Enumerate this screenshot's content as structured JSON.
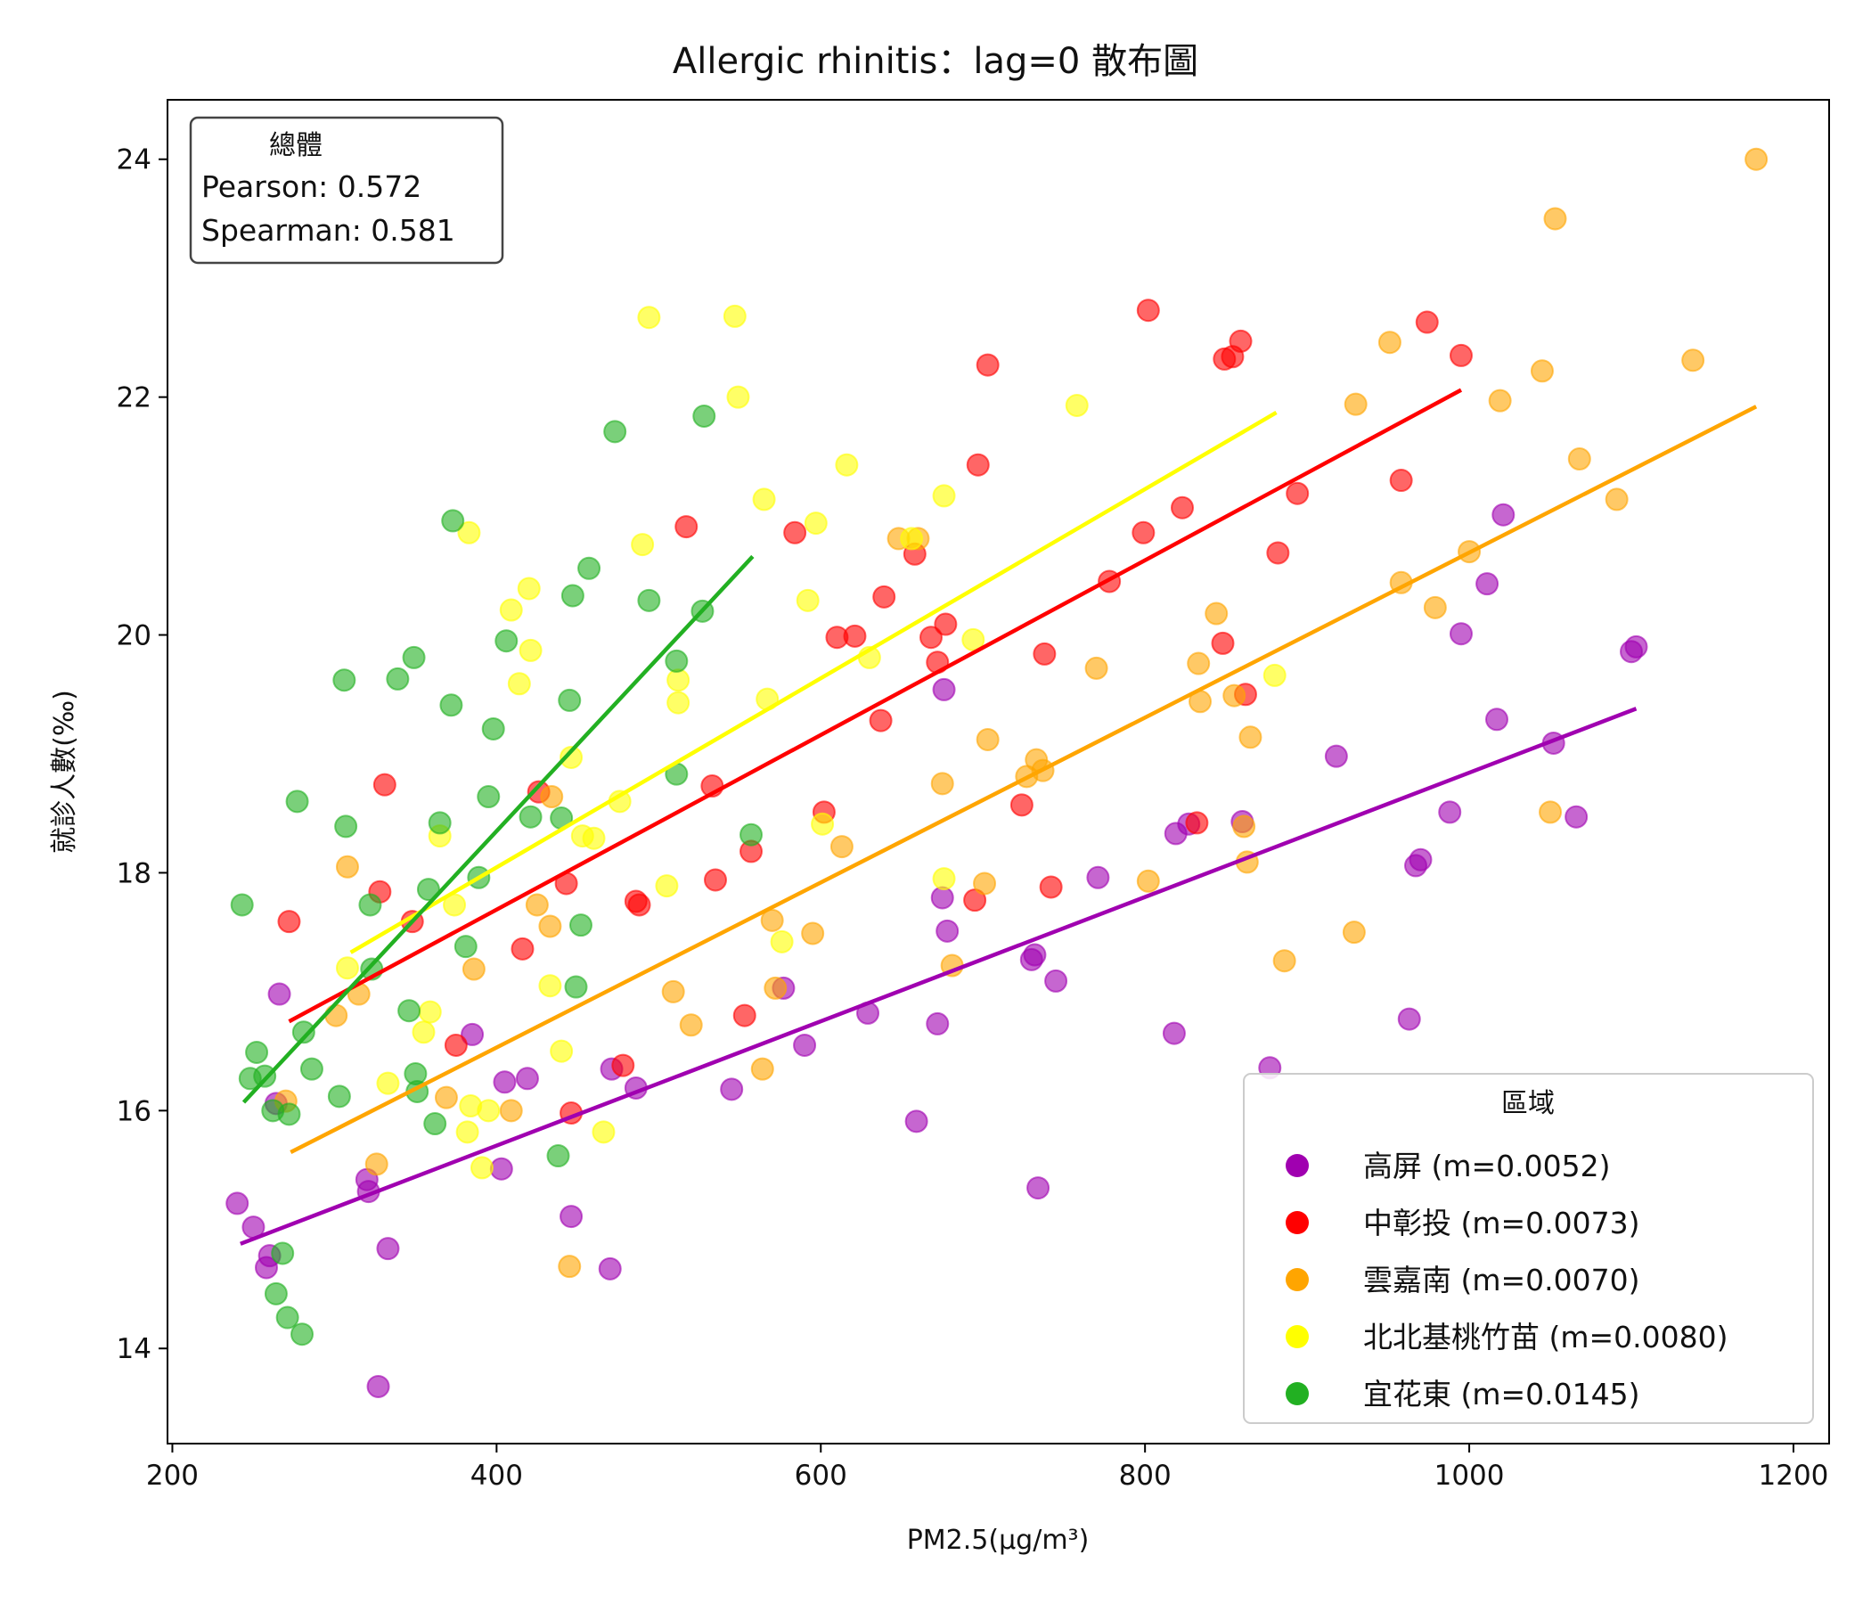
{
  "chart_data": {
    "type": "scatter",
    "title": "Allergic rhinitis：lag=0 散布圖",
    "xlabel": "PM2.5(μg/m³)",
    "ylabel": "就診人數(‰)",
    "xlim": [
      197,
      1222
    ],
    "ylim": [
      13.2,
      24.5
    ],
    "xticks": [
      200,
      400,
      600,
      800,
      1000,
      1200
    ],
    "yticks": [
      14,
      16,
      18,
      20,
      22,
      24
    ],
    "grid": false,
    "stats_box": {
      "title": "總體",
      "pearson": "Pearson: 0.572",
      "spearman": "Spearman: 0.581",
      "placement": "top-left"
    },
    "legend": {
      "title": "區域",
      "placement": "bottom-right"
    },
    "series": [
      {
        "name": "高屏 (m=0.0052)",
        "color": "#a000b0",
        "fit": [
          [
            242,
            14.88
          ],
          [
            1103,
            19.38
          ]
        ],
        "points": [
          [
            240,
            15.22
          ],
          [
            250,
            15.02
          ],
          [
            258,
            14.68
          ],
          [
            260,
            14.78
          ],
          [
            264,
            16.06
          ],
          [
            266,
            16.98
          ],
          [
            320,
            15.42
          ],
          [
            321,
            15.32
          ],
          [
            327,
            13.68
          ],
          [
            333,
            14.84
          ],
          [
            385,
            16.64
          ],
          [
            403,
            15.51
          ],
          [
            405,
            16.24
          ],
          [
            419,
            16.27
          ],
          [
            446,
            15.11
          ],
          [
            470,
            14.67
          ],
          [
            471,
            16.35
          ],
          [
            486,
            16.19
          ],
          [
            545,
            16.18
          ],
          [
            577,
            17.03
          ],
          [
            590,
            16.55
          ],
          [
            629,
            16.82
          ],
          [
            659,
            15.91
          ],
          [
            672,
            16.73
          ],
          [
            675,
            17.79
          ],
          [
            676,
            19.54
          ],
          [
            678,
            17.51
          ],
          [
            730,
            17.27
          ],
          [
            732,
            17.31
          ],
          [
            734,
            15.35
          ],
          [
            745,
            17.09
          ],
          [
            771,
            17.96
          ],
          [
            818,
            16.65
          ],
          [
            819,
            18.33
          ],
          [
            827,
            18.41
          ],
          [
            860,
            18.43
          ],
          [
            877,
            16.36
          ],
          [
            918,
            18.98
          ],
          [
            963,
            16.77
          ],
          [
            967,
            18.06
          ],
          [
            970,
            18.11
          ],
          [
            988,
            18.51
          ],
          [
            995,
            20.01
          ],
          [
            1011,
            20.43
          ],
          [
            1017,
            19.29
          ],
          [
            1021,
            21.01
          ],
          [
            1052,
            19.09
          ],
          [
            1066,
            18.47
          ],
          [
            1100,
            19.86
          ],
          [
            1103,
            19.9
          ]
        ]
      },
      {
        "name": "中彰投 (m=0.0073)",
        "color": "#ff0000",
        "fit": [
          [
            272,
            16.75
          ],
          [
            995,
            22.06
          ]
        ],
        "points": [
          [
            272,
            17.59
          ],
          [
            328,
            17.84
          ],
          [
            331,
            18.74
          ],
          [
            348,
            17.59
          ],
          [
            375,
            16.55
          ],
          [
            416,
            17.36
          ],
          [
            426,
            18.68
          ],
          [
            443,
            17.91
          ],
          [
            446,
            15.98
          ],
          [
            478,
            16.38
          ],
          [
            486,
            17.76
          ],
          [
            488,
            17.73
          ],
          [
            517,
            20.91
          ],
          [
            533,
            18.73
          ],
          [
            535,
            17.94
          ],
          [
            553,
            16.8
          ],
          [
            557,
            18.18
          ],
          [
            584,
            20.86
          ],
          [
            602,
            18.51
          ],
          [
            610,
            19.98
          ],
          [
            621,
            19.99
          ],
          [
            637,
            19.28
          ],
          [
            639,
            20.32
          ],
          [
            658,
            20.68
          ],
          [
            668,
            19.98
          ],
          [
            672,
            19.77
          ],
          [
            677,
            20.09
          ],
          [
            695,
            17.77
          ],
          [
            697,
            21.43
          ],
          [
            703,
            22.27
          ],
          [
            724,
            18.57
          ],
          [
            738,
            19.84
          ],
          [
            742,
            17.88
          ],
          [
            778,
            20.45
          ],
          [
            799,
            20.86
          ],
          [
            802,
            22.73
          ],
          [
            823,
            21.07
          ],
          [
            832,
            18.42
          ],
          [
            848,
            19.93
          ],
          [
            849,
            22.32
          ],
          [
            854,
            22.34
          ],
          [
            859,
            22.47
          ],
          [
            862,
            19.5
          ],
          [
            882,
            20.69
          ],
          [
            894,
            21.19
          ],
          [
            958,
            21.3
          ],
          [
            974,
            22.63
          ],
          [
            995,
            22.35
          ]
        ]
      },
      {
        "name": "雲嘉南 (m=0.0070)",
        "color": "#ffa500",
        "fit": [
          [
            273,
            15.65
          ],
          [
            1177,
            21.92
          ]
        ],
        "points": [
          [
            270,
            16.08
          ],
          [
            301,
            16.8
          ],
          [
            308,
            18.05
          ],
          [
            315,
            16.98
          ],
          [
            326,
            15.55
          ],
          [
            369,
            16.11
          ],
          [
            386,
            17.19
          ],
          [
            409,
            16.0
          ],
          [
            425,
            17.73
          ],
          [
            433,
            17.55
          ],
          [
            434,
            18.64
          ],
          [
            445,
            14.69
          ],
          [
            509,
            17.0
          ],
          [
            520,
            16.72
          ],
          [
            564,
            16.35
          ],
          [
            570,
            17.6
          ],
          [
            572,
            17.03
          ],
          [
            595,
            17.49
          ],
          [
            613,
            18.22
          ],
          [
            648,
            20.81
          ],
          [
            660,
            20.81
          ],
          [
            675,
            18.75
          ],
          [
            681,
            17.22
          ],
          [
            701,
            17.91
          ],
          [
            703,
            19.12
          ],
          [
            727,
            18.81
          ],
          [
            733,
            18.95
          ],
          [
            737,
            18.86
          ],
          [
            770,
            19.72
          ],
          [
            802,
            17.93
          ],
          [
            833,
            19.76
          ],
          [
            834,
            19.44
          ],
          [
            844,
            20.18
          ],
          [
            855,
            19.49
          ],
          [
            861,
            18.39
          ],
          [
            863,
            18.09
          ],
          [
            865,
            19.14
          ],
          [
            886,
            17.26
          ],
          [
            929,
            17.5
          ],
          [
            930,
            21.94
          ],
          [
            951,
            22.46
          ],
          [
            958,
            20.44
          ],
          [
            979,
            20.23
          ],
          [
            1000,
            20.7
          ],
          [
            1019,
            21.97
          ],
          [
            1045,
            22.22
          ],
          [
            1050,
            18.51
          ],
          [
            1053,
            23.5
          ],
          [
            1068,
            21.48
          ],
          [
            1091,
            21.14
          ],
          [
            1138,
            22.31
          ],
          [
            1177,
            24.0
          ]
        ]
      },
      {
        "name": "北北基桃竹苗 (m=0.0080)",
        "color": "#ffff00",
        "fit": [
          [
            310,
            17.33
          ],
          [
            881,
            21.87
          ]
        ],
        "points": [
          [
            308,
            17.2
          ],
          [
            333,
            16.23
          ],
          [
            355,
            16.66
          ],
          [
            359,
            16.83
          ],
          [
            365,
            18.31
          ],
          [
            374,
            17.73
          ],
          [
            382,
            15.82
          ],
          [
            383,
            20.86
          ],
          [
            384,
            16.04
          ],
          [
            391,
            15.52
          ],
          [
            395,
            16.0
          ],
          [
            409,
            20.21
          ],
          [
            414,
            19.59
          ],
          [
            420,
            20.39
          ],
          [
            421,
            19.87
          ],
          [
            433,
            17.05
          ],
          [
            440,
            16.5
          ],
          [
            446,
            18.97
          ],
          [
            453,
            18.31
          ],
          [
            460,
            18.29
          ],
          [
            466,
            15.82
          ],
          [
            476,
            18.6
          ],
          [
            490,
            20.76
          ],
          [
            494,
            22.67
          ],
          [
            505,
            17.89
          ],
          [
            512,
            19.62
          ],
          [
            512,
            19.43
          ],
          [
            547,
            22.68
          ],
          [
            549,
            22.0
          ],
          [
            565,
            21.14
          ],
          [
            567,
            19.46
          ],
          [
            576,
            17.42
          ],
          [
            592,
            20.29
          ],
          [
            597,
            20.94
          ],
          [
            601,
            18.41
          ],
          [
            616,
            21.43
          ],
          [
            630,
            19.81
          ],
          [
            656,
            20.81
          ],
          [
            676,
            21.17
          ],
          [
            676,
            17.95
          ],
          [
            694,
            19.96
          ],
          [
            758,
            21.93
          ],
          [
            880,
            19.66
          ]
        ]
      },
      {
        "name": "宜花東 (m=0.0145)",
        "color": "#22b022",
        "fit": [
          [
            244,
            16.07
          ],
          [
            558,
            20.66
          ]
        ],
        "points": [
          [
            243,
            17.73
          ],
          [
            248,
            16.27
          ],
          [
            252,
            16.49
          ],
          [
            257,
            16.29
          ],
          [
            262,
            16.0
          ],
          [
            264,
            14.46
          ],
          [
            268,
            14.8
          ],
          [
            271,
            14.26
          ],
          [
            272,
            15.97
          ],
          [
            277,
            18.6
          ],
          [
            280,
            14.12
          ],
          [
            281,
            16.66
          ],
          [
            286,
            16.35
          ],
          [
            303,
            16.12
          ],
          [
            306,
            19.62
          ],
          [
            307,
            18.39
          ],
          [
            322,
            17.73
          ],
          [
            323,
            17.19
          ],
          [
            339,
            19.63
          ],
          [
            346,
            16.84
          ],
          [
            349,
            19.81
          ],
          [
            350,
            16.31
          ],
          [
            351,
            16.16
          ],
          [
            358,
            17.86
          ],
          [
            362,
            15.89
          ],
          [
            365,
            18.42
          ],
          [
            372,
            19.41
          ],
          [
            373,
            20.96
          ],
          [
            381,
            17.38
          ],
          [
            389,
            17.96
          ],
          [
            395,
            18.64
          ],
          [
            398,
            19.21
          ],
          [
            406,
            19.95
          ],
          [
            421,
            18.47
          ],
          [
            438,
            15.62
          ],
          [
            440,
            18.46
          ],
          [
            445,
            19.45
          ],
          [
            447,
            20.33
          ],
          [
            449,
            17.04
          ],
          [
            452,
            17.56
          ],
          [
            457,
            20.56
          ],
          [
            473,
            21.71
          ],
          [
            494,
            20.29
          ],
          [
            511,
            19.78
          ],
          [
            511,
            18.83
          ],
          [
            527,
            20.2
          ],
          [
            528,
            21.84
          ],
          [
            557,
            18.32
          ]
        ]
      }
    ]
  }
}
